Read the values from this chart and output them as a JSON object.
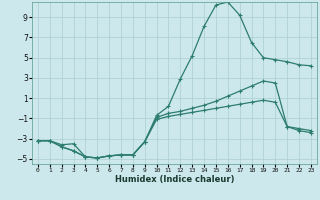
{
  "xlabel": "Humidex (Indice chaleur)",
  "background_color": "#cce8ec",
  "grid_color": "#aacfd4",
  "line_color": "#2d7d6e",
  "xlim": [
    -0.5,
    23.5
  ],
  "ylim": [
    -5.5,
    10.5
  ],
  "yticks": [
    -5,
    -3,
    -1,
    1,
    3,
    5,
    7,
    9
  ],
  "xticks": [
    0,
    1,
    2,
    3,
    4,
    5,
    6,
    7,
    8,
    9,
    10,
    11,
    12,
    13,
    14,
    15,
    16,
    17,
    18,
    19,
    20,
    21,
    22,
    23
  ],
  "line1_x": [
    0,
    1,
    2,
    3,
    4,
    5,
    6,
    7,
    8,
    9,
    10,
    11,
    12,
    13,
    14,
    15,
    16,
    17,
    18,
    19,
    20,
    21,
    22,
    23
  ],
  "line1_y": [
    -3.2,
    -3.2,
    -3.6,
    -3.5,
    -4.8,
    -4.9,
    -4.7,
    -4.6,
    -4.6,
    -3.3,
    -0.7,
    0.2,
    2.9,
    5.2,
    8.1,
    10.2,
    10.5,
    9.2,
    6.5,
    5.0,
    4.8,
    4.6,
    4.3,
    4.2
  ],
  "line2_x": [
    0,
    1,
    2,
    3,
    4,
    5,
    6,
    7,
    8,
    9,
    10,
    11,
    12,
    13,
    14,
    15,
    16,
    17,
    18,
    19,
    20,
    21,
    22,
    23
  ],
  "line2_y": [
    -3.2,
    -3.2,
    -3.8,
    -4.2,
    -4.8,
    -4.9,
    -4.7,
    -4.6,
    -4.6,
    -3.3,
    -0.9,
    -0.5,
    -0.3,
    0.0,
    0.3,
    0.7,
    1.2,
    1.7,
    2.2,
    2.7,
    2.5,
    -1.8,
    -2.0,
    -2.2
  ],
  "line3_x": [
    0,
    1,
    2,
    3,
    4,
    5,
    6,
    7,
    8,
    9,
    10,
    11,
    12,
    13,
    14,
    15,
    16,
    17,
    18,
    19,
    20,
    21,
    22,
    23
  ],
  "line3_y": [
    -3.2,
    -3.2,
    -3.8,
    -4.2,
    -4.8,
    -4.9,
    -4.7,
    -4.6,
    -4.6,
    -3.3,
    -1.1,
    -0.8,
    -0.6,
    -0.4,
    -0.2,
    0.0,
    0.2,
    0.4,
    0.6,
    0.8,
    0.6,
    -1.8,
    -2.2,
    -2.4
  ]
}
